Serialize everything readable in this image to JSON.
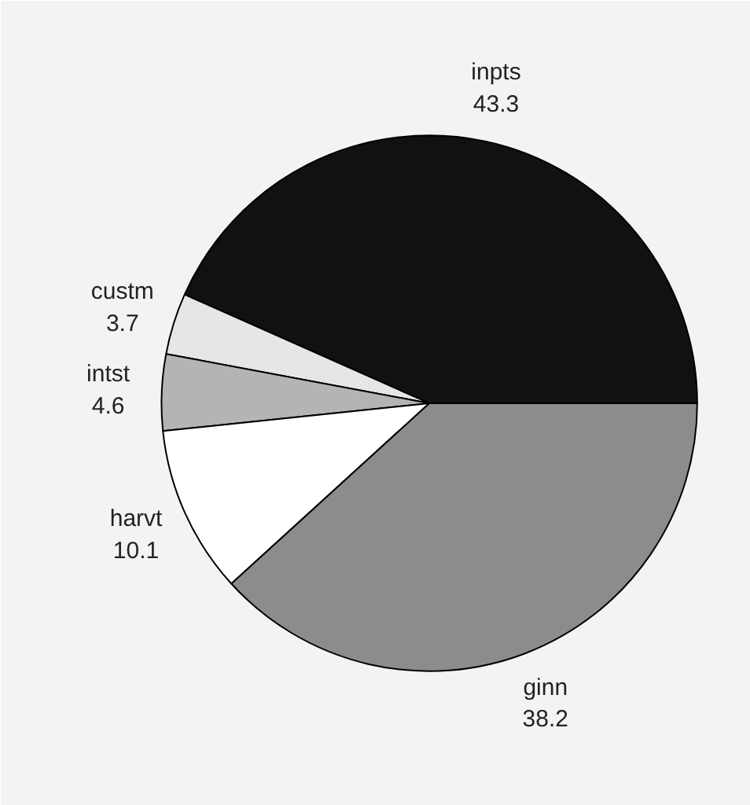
{
  "chart_data": {
    "type": "pie",
    "categories": [
      "inpts",
      "custm",
      "intst",
      "harvt",
      "ginn"
    ],
    "values": [
      43.3,
      3.7,
      4.6,
      10.1,
      38.2
    ],
    "colors": [
      "#111111",
      "#e6e6e6",
      "#b4b4b4",
      "#ffffff",
      "#8c8c8c"
    ],
    "data_labels": true
  }
}
